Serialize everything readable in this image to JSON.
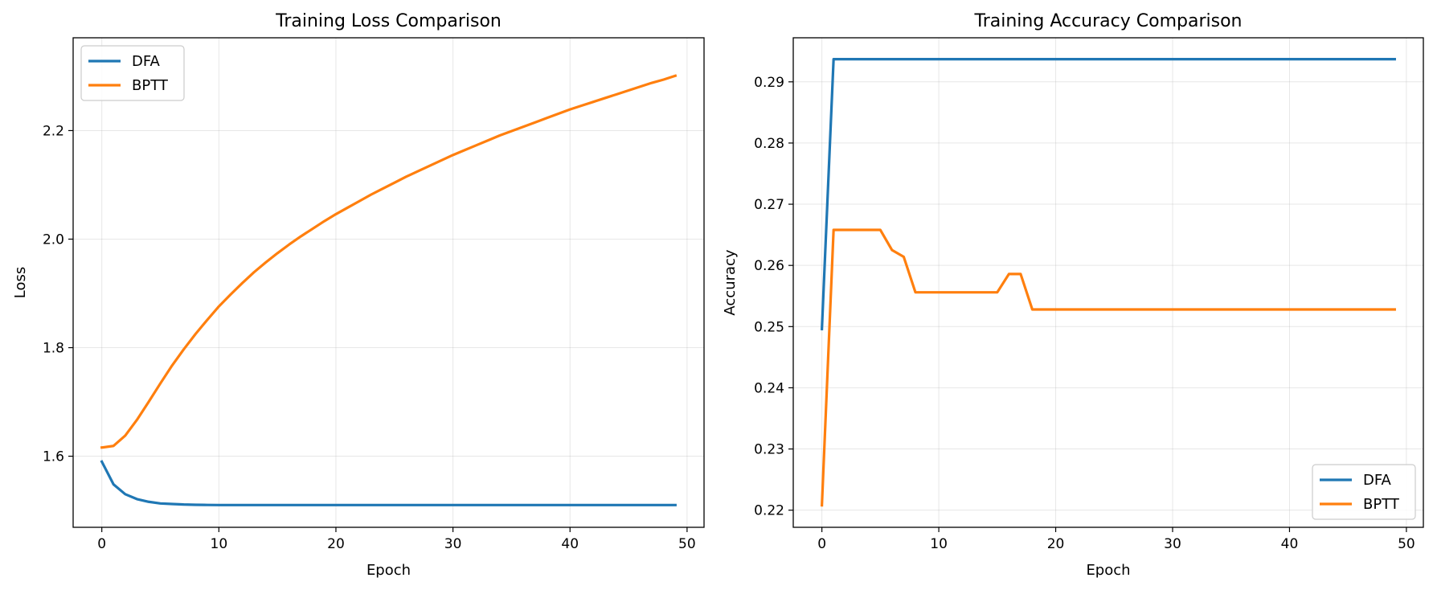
{
  "colors": {
    "DFA": "#1f77b4",
    "BPTT": "#ff7f0e"
  },
  "chart_data": [
    {
      "type": "line",
      "title": "Training Loss Comparison",
      "xlabel": "Epoch",
      "ylabel": "Loss",
      "xlim": [
        -2.45,
        51.45
      ],
      "ylim": [
        1.469,
        2.371
      ],
      "xticks": [
        0,
        10,
        20,
        30,
        40,
        50
      ],
      "yticks": [
        1.6,
        1.8,
        2.0,
        2.2
      ],
      "ytick_labels": [
        "1.6",
        "1.8",
        "2.0",
        "2.2"
      ],
      "grid": true,
      "legend_loc": "upper left",
      "series": [
        {
          "name": "DFA",
          "x": [
            0,
            1,
            2,
            3,
            4,
            5,
            6,
            7,
            8,
            9,
            10,
            11,
            12,
            13,
            14,
            15,
            16,
            17,
            18,
            19,
            20,
            21,
            22,
            23,
            24,
            25,
            26,
            27,
            28,
            29,
            30,
            31,
            32,
            33,
            34,
            35,
            36,
            37,
            38,
            39,
            40,
            41,
            42,
            43,
            44,
            45,
            46,
            47,
            48,
            49
          ],
          "y": [
            1.59,
            1.548,
            1.53,
            1.521,
            1.516,
            1.513,
            1.512,
            1.511,
            1.5105,
            1.5102,
            1.51,
            1.51,
            1.51,
            1.51,
            1.51,
            1.51,
            1.51,
            1.51,
            1.51,
            1.51,
            1.51,
            1.51,
            1.51,
            1.51,
            1.51,
            1.51,
            1.51,
            1.51,
            1.51,
            1.51,
            1.51,
            1.51,
            1.51,
            1.51,
            1.51,
            1.51,
            1.51,
            1.51,
            1.51,
            1.51,
            1.51,
            1.51,
            1.51,
            1.51,
            1.51,
            1.51,
            1.51,
            1.51,
            1.51,
            1.51
          ]
        },
        {
          "name": "BPTT",
          "x": [
            0,
            1,
            2,
            3,
            4,
            5,
            6,
            7,
            8,
            9,
            10,
            11,
            12,
            13,
            14,
            15,
            16,
            17,
            18,
            19,
            20,
            21,
            22,
            23,
            24,
            25,
            26,
            27,
            28,
            29,
            30,
            31,
            32,
            33,
            34,
            35,
            36,
            37,
            38,
            39,
            40,
            41,
            42,
            43,
            44,
            45,
            46,
            47,
            48,
            49
          ],
          "y": [
            1.616,
            1.619,
            1.638,
            1.667,
            1.7,
            1.734,
            1.767,
            1.797,
            1.825,
            1.851,
            1.876,
            1.898,
            1.919,
            1.939,
            1.957,
            1.974,
            1.99,
            2.005,
            2.019,
            2.033,
            2.046,
            2.058,
            2.07,
            2.082,
            2.093,
            2.104,
            2.115,
            2.125,
            2.135,
            2.145,
            2.155,
            2.164,
            2.173,
            2.182,
            2.191,
            2.199,
            2.207,
            2.215,
            2.223,
            2.231,
            2.239,
            2.246,
            2.253,
            2.26,
            2.267,
            2.274,
            2.281,
            2.288,
            2.294,
            2.301
          ]
        }
      ]
    },
    {
      "type": "line",
      "title": "Training Accuracy Comparison",
      "xlabel": "Epoch",
      "ylabel": "Accuracy",
      "xlim": [
        -2.45,
        51.45
      ],
      "ylim": [
        0.2172,
        0.2972
      ],
      "xticks": [
        0,
        10,
        20,
        30,
        40,
        50
      ],
      "yticks": [
        0.22,
        0.23,
        0.24,
        0.25,
        0.26,
        0.27,
        0.28,
        0.29
      ],
      "ytick_labels": [
        "0.22",
        "0.23",
        "0.24",
        "0.25",
        "0.26",
        "0.27",
        "0.28",
        "0.29"
      ],
      "grid": true,
      "legend_loc": "lower right",
      "series": [
        {
          "name": "DFA",
          "x": [
            0,
            1,
            2,
            3,
            4,
            5,
            6,
            7,
            8,
            9,
            10,
            11,
            12,
            13,
            14,
            15,
            16,
            17,
            18,
            19,
            20,
            21,
            22,
            23,
            24,
            25,
            26,
            27,
            28,
            29,
            30,
            31,
            32,
            33,
            34,
            35,
            36,
            37,
            38,
            39,
            40,
            41,
            42,
            43,
            44,
            45,
            46,
            47,
            48,
            49
          ],
          "y": [
            0.2496,
            0.2937,
            0.2937,
            0.2937,
            0.2937,
            0.2937,
            0.2937,
            0.2937,
            0.2937,
            0.2937,
            0.2937,
            0.2937,
            0.2937,
            0.2937,
            0.2937,
            0.2937,
            0.2937,
            0.2937,
            0.2937,
            0.2937,
            0.2937,
            0.2937,
            0.2937,
            0.2937,
            0.2937,
            0.2937,
            0.2937,
            0.2937,
            0.2937,
            0.2937,
            0.2937,
            0.2937,
            0.2937,
            0.2937,
            0.2937,
            0.2937,
            0.2937,
            0.2937,
            0.2937,
            0.2937,
            0.2937,
            0.2937,
            0.2937,
            0.2937,
            0.2937,
            0.2937,
            0.2937,
            0.2937,
            0.2937,
            0.2937
          ]
        },
        {
          "name": "BPTT",
          "x": [
            0,
            1,
            2,
            3,
            4,
            5,
            6,
            7,
            8,
            9,
            10,
            11,
            12,
            13,
            14,
            15,
            16,
            17,
            18,
            19,
            20,
            21,
            22,
            23,
            24,
            25,
            26,
            27,
            28,
            29,
            30,
            31,
            32,
            33,
            34,
            35,
            36,
            37,
            38,
            39,
            40,
            41,
            42,
            43,
            44,
            45,
            46,
            47,
            48,
            49
          ],
          "y": [
            0.2208,
            0.2658,
            0.2658,
            0.2658,
            0.2658,
            0.2658,
            0.2625,
            0.2614,
            0.2556,
            0.2556,
            0.2556,
            0.2556,
            0.2556,
            0.2556,
            0.2556,
            0.2556,
            0.2586,
            0.2586,
            0.2528,
            0.2528,
            0.2528,
            0.2528,
            0.2528,
            0.2528,
            0.2528,
            0.2528,
            0.2528,
            0.2528,
            0.2528,
            0.2528,
            0.2528,
            0.2528,
            0.2528,
            0.2528,
            0.2528,
            0.2528,
            0.2528,
            0.2528,
            0.2528,
            0.2528,
            0.2528,
            0.2528,
            0.2528,
            0.2528,
            0.2528,
            0.2528,
            0.2528,
            0.2528,
            0.2528,
            0.2528
          ]
        }
      ]
    }
  ]
}
